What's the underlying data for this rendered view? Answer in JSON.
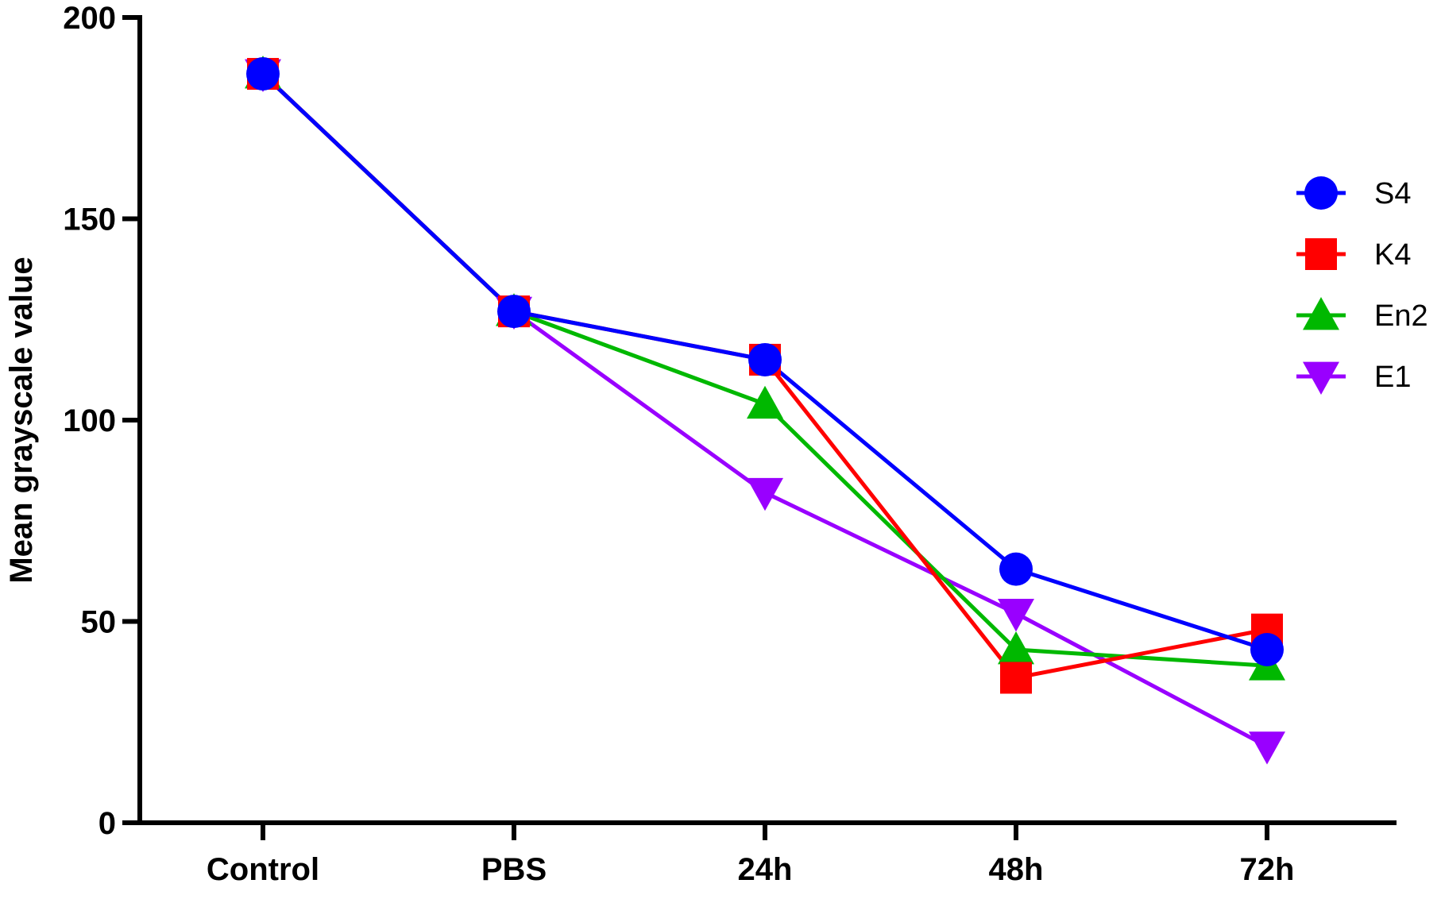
{
  "chart_data": {
    "type": "line",
    "title": "",
    "xlabel": "",
    "ylabel": "Mean grayscale value",
    "categories": [
      "Control",
      "PBS",
      "24h",
      "48h",
      "72h"
    ],
    "ylim": [
      0,
      200
    ],
    "yticks": [
      0,
      50,
      100,
      150,
      200
    ],
    "grid": false,
    "legend_position": "right",
    "series": [
      {
        "name": "S4",
        "color": "#0000ff",
        "marker": "circle",
        "values": [
          186,
          127,
          115,
          63,
          43
        ]
      },
      {
        "name": "K4",
        "color": "#ff0000",
        "marker": "square",
        "values": [
          186,
          127,
          115,
          36,
          48
        ]
      },
      {
        "name": "En2",
        "color": "#00b800",
        "marker": "triangle-up",
        "values": [
          186,
          127,
          104,
          43,
          39
        ]
      },
      {
        "name": "E1",
        "color": "#9900ff",
        "marker": "triangle-down",
        "values": [
          186,
          127,
          82,
          52,
          19
        ]
      }
    ],
    "draw_order": [
      "E1",
      "En2",
      "K4",
      "S4"
    ]
  }
}
